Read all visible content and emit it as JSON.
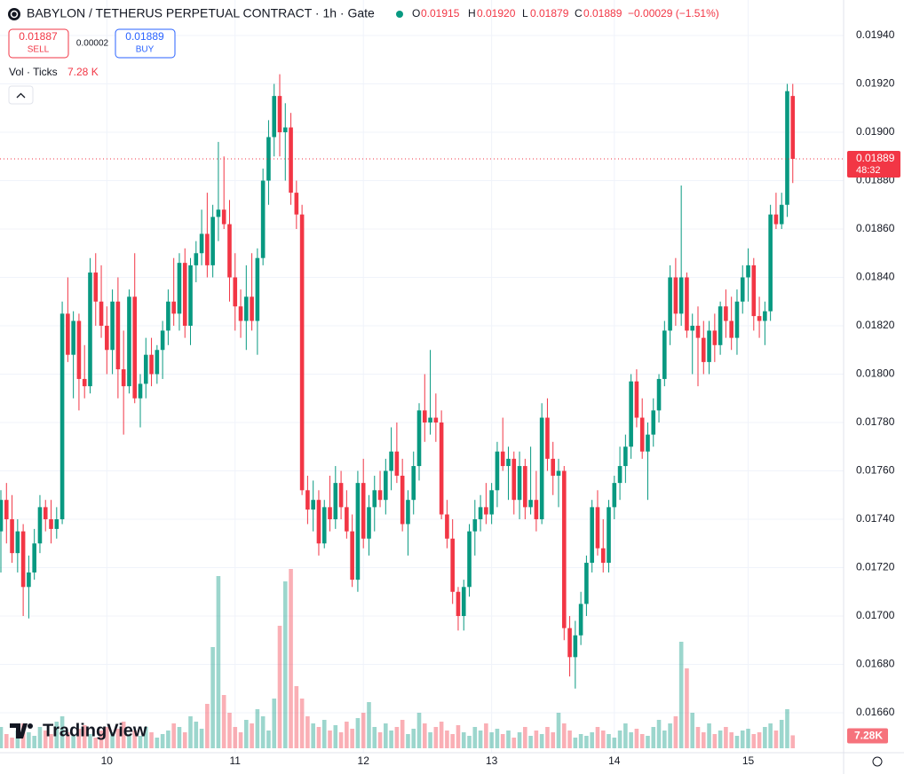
{
  "header": {
    "title": "BABYLON / TETHERUS PERPETUAL CONTRACT · 1h · Gate",
    "o_label": "O",
    "o": "0.01915",
    "h_label": "H",
    "h": "0.01920",
    "l_label": "L",
    "l": "0.01879",
    "c_label": "C",
    "c": "0.01889",
    "change": "−0.00029 (−1.51%)",
    "sell_price": "0.01887",
    "sell": "SELL",
    "spread": "0.00002",
    "buy_price": "0.01889",
    "buy": "BUY",
    "vol_label": "Vol · Ticks",
    "vol_value": "7.28 K",
    "last_price": "0.01889",
    "countdown": "48:32",
    "last_volume": "7.28K",
    "logo": "TradingView"
  },
  "chart_data": {
    "type": "candlestick",
    "up_color": "#089981",
    "down_color": "#f23645",
    "ylim": [
      0.0166,
      0.0194
    ],
    "yticks": [
      {
        "value": 0.0166,
        "label": "0.01660"
      },
      {
        "value": 0.0168,
        "label": "0.01680"
      },
      {
        "value": 0.017,
        "label": "0.01700"
      },
      {
        "value": 0.0172,
        "label": "0.01720"
      },
      {
        "value": 0.0174,
        "label": "0.01740"
      },
      {
        "value": 0.0176,
        "label": "0.01760"
      },
      {
        "value": 0.0178,
        "label": "0.01780"
      },
      {
        "value": 0.018,
        "label": "0.01800"
      },
      {
        "value": 0.0182,
        "label": "0.01820"
      },
      {
        "value": 0.0184,
        "label": "0.01840"
      },
      {
        "value": 0.0186,
        "label": "0.01860"
      },
      {
        "value": 0.0188,
        "label": "0.01880"
      },
      {
        "value": 0.019,
        "label": "0.01900"
      },
      {
        "value": 0.0192,
        "label": "0.01920"
      },
      {
        "value": 0.0194,
        "label": "0.01940"
      }
    ],
    "xticks": [
      {
        "value": 19,
        "label": "10"
      },
      {
        "value": 42,
        "label": "11"
      },
      {
        "value": 65,
        "label": "12"
      },
      {
        "value": 88,
        "label": "13"
      },
      {
        "value": 110,
        "label": "14"
      },
      {
        "value": 134,
        "label": "15"
      }
    ],
    "grid": true,
    "vlim": [
      0,
      105000
    ],
    "ohlc": [
      [
        0.01735,
        0.01752,
        0.01718,
        0.01748
      ],
      [
        0.01748,
        0.01755,
        0.0173,
        0.0174
      ],
      [
        0.0174,
        0.0175,
        0.01722,
        0.01726
      ],
      [
        0.01726,
        0.0174,
        0.01718,
        0.01735
      ],
      [
        0.01735,
        0.01738,
        0.017,
        0.01712
      ],
      [
        0.01712,
        0.01725,
        0.01699,
        0.01718
      ],
      [
        0.01718,
        0.01736,
        0.01715,
        0.0173
      ],
      [
        0.0173,
        0.0175,
        0.01726,
        0.01745
      ],
      [
        0.01745,
        0.01748,
        0.01735,
        0.0174
      ],
      [
        0.0174,
        0.01748,
        0.0173,
        0.01736
      ],
      [
        0.01736,
        0.01745,
        0.01732,
        0.0174
      ],
      [
        0.0174,
        0.0183,
        0.01738,
        0.01825
      ],
      [
        0.01825,
        0.0184,
        0.01805,
        0.01808
      ],
      [
        0.01808,
        0.01826,
        0.0179,
        0.01822
      ],
      [
        0.01822,
        0.01825,
        0.01785,
        0.01798
      ],
      [
        0.01798,
        0.01812,
        0.0179,
        0.01795
      ],
      [
        0.01795,
        0.01848,
        0.01792,
        0.01842
      ],
      [
        0.01842,
        0.0185,
        0.0182,
        0.0183
      ],
      [
        0.0183,
        0.01845,
        0.01815,
        0.0182
      ],
      [
        0.0182,
        0.01828,
        0.018,
        0.0181
      ],
      [
        0.0181,
        0.01835,
        0.018,
        0.0183
      ],
      [
        0.0183,
        0.0184,
        0.0179,
        0.01802
      ],
      [
        0.01802,
        0.01818,
        0.01775,
        0.01795
      ],
      [
        0.01795,
        0.01835,
        0.01792,
        0.01832
      ],
      [
        0.01832,
        0.0185,
        0.01788,
        0.0179
      ],
      [
        0.0179,
        0.018,
        0.01778,
        0.01796
      ],
      [
        0.01796,
        0.01815,
        0.0179,
        0.01808
      ],
      [
        0.01808,
        0.01815,
        0.01795,
        0.018
      ],
      [
        0.018,
        0.01812,
        0.01796,
        0.0181
      ],
      [
        0.0181,
        0.01822,
        0.01798,
        0.01818
      ],
      [
        0.01818,
        0.01835,
        0.01812,
        0.0183
      ],
      [
        0.0183,
        0.01848,
        0.0182,
        0.01825
      ],
      [
        0.01825,
        0.0185,
        0.01818,
        0.01846
      ],
      [
        0.01846,
        0.01852,
        0.01815,
        0.0182
      ],
      [
        0.0182,
        0.01848,
        0.01812,
        0.01845
      ],
      [
        0.01845,
        0.01855,
        0.01838,
        0.0185
      ],
      [
        0.0185,
        0.01868,
        0.01845,
        0.01858
      ],
      [
        0.01858,
        0.01875,
        0.0184,
        0.01845
      ],
      [
        0.01845,
        0.0187,
        0.0184,
        0.01865
      ],
      [
        0.01865,
        0.01896,
        0.01855,
        0.01868
      ],
      [
        0.01868,
        0.0189,
        0.0186,
        0.01862
      ],
      [
        0.01862,
        0.01872,
        0.0183,
        0.0184
      ],
      [
        0.0184,
        0.0185,
        0.01818,
        0.01828
      ],
      [
        0.01828,
        0.01835,
        0.01815,
        0.01822
      ],
      [
        0.01822,
        0.01845,
        0.0181,
        0.01832
      ],
      [
        0.01832,
        0.0185,
        0.01818,
        0.01822
      ],
      [
        0.01822,
        0.01852,
        0.01808,
        0.01848
      ],
      [
        0.01848,
        0.01885,
        0.01845,
        0.0188
      ],
      [
        0.0188,
        0.01905,
        0.0187,
        0.01898
      ],
      [
        0.01898,
        0.0192,
        0.0189,
        0.01915
      ],
      [
        0.01915,
        0.01924,
        0.0189,
        0.019
      ],
      [
        0.019,
        0.01912,
        0.0188,
        0.01902
      ],
      [
        0.01902,
        0.01908,
        0.0187,
        0.01875
      ],
      [
        0.01875,
        0.0188,
        0.0186,
        0.01866
      ],
      [
        0.01866,
        0.0187,
        0.0175,
        0.01752
      ],
      [
        0.01752,
        0.01758,
        0.01738,
        0.01744
      ],
      [
        0.01744,
        0.01756,
        0.01735,
        0.01748
      ],
      [
        0.01748,
        0.01752,
        0.01725,
        0.0173
      ],
      [
        0.0173,
        0.01748,
        0.01728,
        0.01745
      ],
      [
        0.01745,
        0.01758,
        0.01735,
        0.0174
      ],
      [
        0.0174,
        0.01762,
        0.01736,
        0.01755
      ],
      [
        0.01755,
        0.0176,
        0.0174,
        0.01745
      ],
      [
        0.01745,
        0.01752,
        0.01732,
        0.01735
      ],
      [
        0.01735,
        0.01742,
        0.01712,
        0.01715
      ],
      [
        0.01715,
        0.0176,
        0.0171,
        0.01755
      ],
      [
        0.01755,
        0.01765,
        0.01728,
        0.01732
      ],
      [
        0.01732,
        0.0175,
        0.01725,
        0.01745
      ],
      [
        0.01745,
        0.01758,
        0.01735,
        0.01752
      ],
      [
        0.01752,
        0.0176,
        0.01745,
        0.01748
      ],
      [
        0.01748,
        0.01765,
        0.01742,
        0.0176
      ],
      [
        0.0176,
        0.01778,
        0.01752,
        0.01768
      ],
      [
        0.01768,
        0.0178,
        0.01755,
        0.01758
      ],
      [
        0.01758,
        0.01765,
        0.01735,
        0.01738
      ],
      [
        0.01738,
        0.01752,
        0.01725,
        0.01748
      ],
      [
        0.01748,
        0.01768,
        0.01742,
        0.01762
      ],
      [
        0.01762,
        0.01788,
        0.01756,
        0.01785
      ],
      [
        0.01785,
        0.018,
        0.01772,
        0.0178
      ],
      [
        0.0178,
        0.0181,
        0.01775,
        0.01782
      ],
      [
        0.01782,
        0.01792,
        0.01772,
        0.0178
      ],
      [
        0.0178,
        0.01785,
        0.0174,
        0.01742
      ],
      [
        0.01742,
        0.01748,
        0.01728,
        0.01732
      ],
      [
        0.01732,
        0.0174,
        0.01705,
        0.0171
      ],
      [
        0.0171,
        0.01712,
        0.01694,
        0.017
      ],
      [
        0.017,
        0.01715,
        0.01694,
        0.01712
      ],
      [
        0.01712,
        0.01738,
        0.01708,
        0.01735
      ],
      [
        0.01735,
        0.01748,
        0.01725,
        0.0174
      ],
      [
        0.0174,
        0.0175,
        0.01735,
        0.01745
      ],
      [
        0.01745,
        0.01755,
        0.01738,
        0.01742
      ],
      [
        0.01742,
        0.01755,
        0.01738,
        0.01752
      ],
      [
        0.01752,
        0.01772,
        0.01745,
        0.01768
      ],
      [
        0.01768,
        0.01782,
        0.0176,
        0.01762
      ],
      [
        0.01762,
        0.0177,
        0.01748,
        0.01765
      ],
      [
        0.01765,
        0.01768,
        0.01742,
        0.01748
      ],
      [
        0.01748,
        0.01768,
        0.0174,
        0.01762
      ],
      [
        0.01762,
        0.01765,
        0.0174,
        0.01745
      ],
      [
        0.01745,
        0.0177,
        0.01742,
        0.01748
      ],
      [
        0.01748,
        0.0176,
        0.01735,
        0.0174
      ],
      [
        0.0174,
        0.01788,
        0.01738,
        0.01782
      ],
      [
        0.01782,
        0.0179,
        0.0176,
        0.01765
      ],
      [
        0.01765,
        0.01772,
        0.0175,
        0.01758
      ],
      [
        0.01758,
        0.01765,
        0.01745,
        0.0176
      ],
      [
        0.0176,
        0.01762,
        0.0169,
        0.01695
      ],
      [
        0.01695,
        0.017,
        0.01675,
        0.01683
      ],
      [
        0.01683,
        0.01698,
        0.0167,
        0.01692
      ],
      [
        0.01692,
        0.0171,
        0.01688,
        0.01705
      ],
      [
        0.01705,
        0.01725,
        0.017,
        0.01722
      ],
      [
        0.01722,
        0.01748,
        0.01718,
        0.01745
      ],
      [
        0.01745,
        0.01752,
        0.01725,
        0.01728
      ],
      [
        0.01728,
        0.0174,
        0.01718,
        0.01722
      ],
      [
        0.01722,
        0.01748,
        0.01718,
        0.01745
      ],
      [
        0.01745,
        0.01758,
        0.0174,
        0.01755
      ],
      [
        0.01755,
        0.0177,
        0.01748,
        0.01762
      ],
      [
        0.01762,
        0.01775,
        0.01755,
        0.0177
      ],
      [
        0.0177,
        0.018,
        0.01765,
        0.01797
      ],
      [
        0.01797,
        0.01802,
        0.01778,
        0.01782
      ],
      [
        0.01782,
        0.0179,
        0.01765,
        0.01768
      ],
      [
        0.01768,
        0.0178,
        0.01748,
        0.01775
      ],
      [
        0.01775,
        0.0179,
        0.0177,
        0.01785
      ],
      [
        0.01785,
        0.018,
        0.0178,
        0.01798
      ],
      [
        0.01798,
        0.01822,
        0.01795,
        0.01818
      ],
      [
        0.01818,
        0.01845,
        0.01812,
        0.0184
      ],
      [
        0.0184,
        0.01848,
        0.0182,
        0.01825
      ],
      [
        0.01825,
        0.01878,
        0.0182,
        0.0184
      ],
      [
        0.0184,
        0.01842,
        0.01815,
        0.01818
      ],
      [
        0.01818,
        0.01825,
        0.018,
        0.0182
      ],
      [
        0.0182,
        0.01828,
        0.01795,
        0.01815
      ],
      [
        0.01815,
        0.01822,
        0.018,
        0.01805
      ],
      [
        0.01805,
        0.01822,
        0.018,
        0.01818
      ],
      [
        0.01818,
        0.01825,
        0.01805,
        0.01812
      ],
      [
        0.01812,
        0.0183,
        0.01808,
        0.01828
      ],
      [
        0.01828,
        0.01835,
        0.01815,
        0.01822
      ],
      [
        0.01822,
        0.01832,
        0.0181,
        0.01815
      ],
      [
        0.01815,
        0.01835,
        0.01808,
        0.0183
      ],
      [
        0.0183,
        0.01845,
        0.01825,
        0.0184
      ],
      [
        0.0184,
        0.01852,
        0.0183,
        0.01845
      ],
      [
        0.01845,
        0.01848,
        0.01818,
        0.01824
      ],
      [
        0.01824,
        0.01832,
        0.01815,
        0.01822
      ],
      [
        0.01822,
        0.0183,
        0.01812,
        0.01826
      ],
      [
        0.01826,
        0.0187,
        0.01822,
        0.01866
      ],
      [
        0.01866,
        0.01875,
        0.0186,
        0.01862
      ],
      [
        0.01862,
        0.01875,
        0.0186,
        0.0187
      ],
      [
        0.0187,
        0.0192,
        0.01865,
        0.01917
      ],
      [
        0.01915,
        0.0192,
        0.01879,
        0.01889
      ]
    ],
    "volume": [
      12000,
      8000,
      6000,
      10000,
      14000,
      9000,
      7000,
      12000,
      10000,
      8000,
      15000,
      18000,
      9000,
      7000,
      11000,
      13000,
      8000,
      6000,
      10000,
      12000,
      9000,
      11000,
      15000,
      8000,
      10000,
      7000,
      12000,
      9000,
      6000,
      8000,
      10000,
      14000,
      12000,
      9000,
      18000,
      15000,
      11000,
      25000,
      57000,
      97000,
      30000,
      20000,
      12000,
      9000,
      16000,
      14000,
      22000,
      18000,
      10000,
      28000,
      69000,
      94000,
      101000,
      35000,
      28000,
      18000,
      14000,
      12000,
      16000,
      10000,
      13000,
      9000,
      15000,
      11000,
      17000,
      20000,
      26000,
      12000,
      9000,
      14000,
      10000,
      12000,
      16000,
      8000,
      11000,
      20000,
      14000,
      9000,
      12000,
      15000,
      10000,
      8000,
      13000,
      9000,
      7000,
      12000,
      10000,
      14000,
      9000,
      11000,
      8000,
      10000,
      6000,
      9000,
      12000,
      7000,
      10000,
      8000,
      12000,
      9000,
      20000,
      14000,
      10000,
      6000,
      8000,
      7000,
      9000,
      12000,
      10000,
      8000,
      6000,
      10000,
      14000,
      9000,
      11000,
      8000,
      7000,
      12000,
      16000,
      10000,
      14000,
      18000,
      60000,
      45000,
      20000,
      12000,
      9000,
      14000,
      8000,
      10000,
      12000,
      9000,
      7000,
      10000,
      11000,
      8000,
      9000,
      12000,
      14000,
      10000,
      16000,
      22000,
      7280
    ]
  }
}
